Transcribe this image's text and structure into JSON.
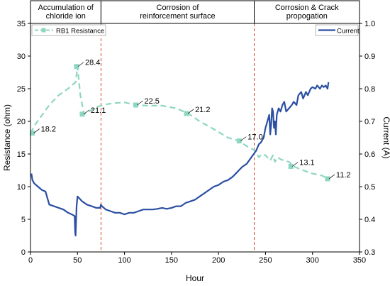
{
  "chart_data": {
    "type": "line",
    "xlabel": "Hour",
    "ylabel_left": "Resistance (ohm)",
    "ylabel_right": "Current (A)",
    "xlim": [
      0,
      350
    ],
    "ylim_left": [
      0,
      35
    ],
    "ylim_right": [
      0.3,
      1.0
    ],
    "xticks": [
      "0",
      "50",
      "100",
      "150",
      "200",
      "250",
      "300",
      "350"
    ],
    "yticks_left": [
      "0",
      "5",
      "10",
      "15",
      "20",
      "25",
      "30",
      "35"
    ],
    "yticks_right": [
      "0.3",
      "0.4",
      "0.5",
      "0.6",
      "0.7",
      "0.8",
      "0.9",
      "1.0"
    ],
    "grid": false,
    "phases": [
      {
        "label_lines": [
          "Accumulation of",
          "chloride ion"
        ],
        "x_start": 0,
        "x_end": 75
      },
      {
        "label_lines": [
          "Corrosion of",
          "reinforcement surface"
        ],
        "x_start": 75,
        "x_end": 238
      },
      {
        "label_lines": [
          "Corrosion & Crack",
          "propogation"
        ],
        "x_start": 238,
        "x_end": 350
      }
    ],
    "phase_boundaries": [
      75,
      238
    ],
    "series": [
      {
        "name": "RB1 Resistance",
        "axis": "left",
        "color": "#8fd6c2",
        "style": "dashed",
        "x": [
          0,
          5,
          10,
          20,
          30,
          40,
          48,
          50,
          53,
          57,
          62,
          70,
          80,
          90,
          100,
          112,
          125,
          140,
          155,
          168,
          180,
          195,
          210,
          222,
          230,
          238,
          243,
          246,
          250,
          255,
          258,
          260,
          263,
          266,
          270,
          275,
          280,
          290,
          300,
          310,
          317
        ],
        "values": [
          18.2,
          19.5,
          20.5,
          22.5,
          24,
          25,
          26,
          28.4,
          24,
          21.1,
          21.5,
          22.2,
          22.6,
          22.8,
          22.9,
          22.5,
          22.4,
          22.4,
          22.0,
          21.2,
          20.0,
          18.8,
          17.5,
          17.0,
          16.2,
          15.6,
          14.5,
          15.0,
          14.8,
          14.0,
          14.8,
          13.8,
          14.5,
          14.2,
          14.0,
          13.8,
          13.1,
          12.5,
          12.0,
          11.7,
          11.2
        ],
        "markers": [
          {
            "x": 2,
            "y": 18.2,
            "label": "18.2"
          },
          {
            "x": 49,
            "y": 28.4,
            "label": "28.4"
          },
          {
            "x": 55,
            "y": 21.1,
            "label": "21.1"
          },
          {
            "x": 112,
            "y": 22.5,
            "label": "22.5"
          },
          {
            "x": 166,
            "y": 21.2,
            "label": "21.2"
          },
          {
            "x": 222,
            "y": 17.0,
            "label": "17.0"
          },
          {
            "x": 277,
            "y": 13.1,
            "label": "13.1"
          },
          {
            "x": 316,
            "y": 11.2,
            "label": "11.2"
          }
        ]
      },
      {
        "name": "Current",
        "axis": "right",
        "color": "#2b4fa3",
        "style": "solid",
        "x": [
          1,
          2,
          4,
          8,
          12,
          16,
          20,
          25,
          30,
          35,
          40,
          44,
          47,
          47.5,
          48,
          49,
          50,
          55,
          60,
          65,
          70,
          74,
          75,
          76,
          80,
          85,
          90,
          95,
          100,
          105,
          110,
          115,
          120,
          125,
          130,
          135,
          140,
          145,
          150,
          155,
          160,
          165,
          170,
          175,
          180,
          185,
          190,
          195,
          200,
          205,
          210,
          215,
          220,
          225,
          230,
          235,
          240,
          243,
          245,
          248,
          250,
          252,
          254,
          255,
          256,
          257,
          258,
          259,
          260,
          261,
          262,
          264,
          266,
          268,
          270,
          272,
          275,
          278,
          280,
          283,
          285,
          288,
          290,
          293,
          295,
          298,
          300,
          303,
          305,
          308,
          310,
          312,
          314,
          316,
          317
        ],
        "values": [
          0.54,
          0.52,
          0.51,
          0.5,
          0.49,
          0.485,
          0.445,
          0.44,
          0.435,
          0.43,
          0.42,
          0.415,
          0.41,
          0.36,
          0.35,
          0.44,
          0.47,
          0.455,
          0.445,
          0.44,
          0.435,
          0.435,
          0.445,
          0.44,
          0.43,
          0.425,
          0.42,
          0.42,
          0.415,
          0.42,
          0.42,
          0.425,
          0.43,
          0.43,
          0.43,
          0.432,
          0.435,
          0.432,
          0.435,
          0.44,
          0.44,
          0.45,
          0.455,
          0.46,
          0.47,
          0.48,
          0.49,
          0.5,
          0.505,
          0.515,
          0.52,
          0.53,
          0.545,
          0.56,
          0.57,
          0.59,
          0.61,
          0.63,
          0.635,
          0.65,
          0.68,
          0.7,
          0.72,
          0.66,
          0.69,
          0.74,
          0.73,
          0.68,
          0.7,
          0.66,
          0.72,
          0.74,
          0.73,
          0.75,
          0.76,
          0.73,
          0.74,
          0.75,
          0.76,
          0.75,
          0.78,
          0.79,
          0.77,
          0.79,
          0.78,
          0.8,
          0.805,
          0.8,
          0.81,
          0.8,
          0.81,
          0.805,
          0.81,
          0.8,
          0.82
        ]
      }
    ]
  }
}
